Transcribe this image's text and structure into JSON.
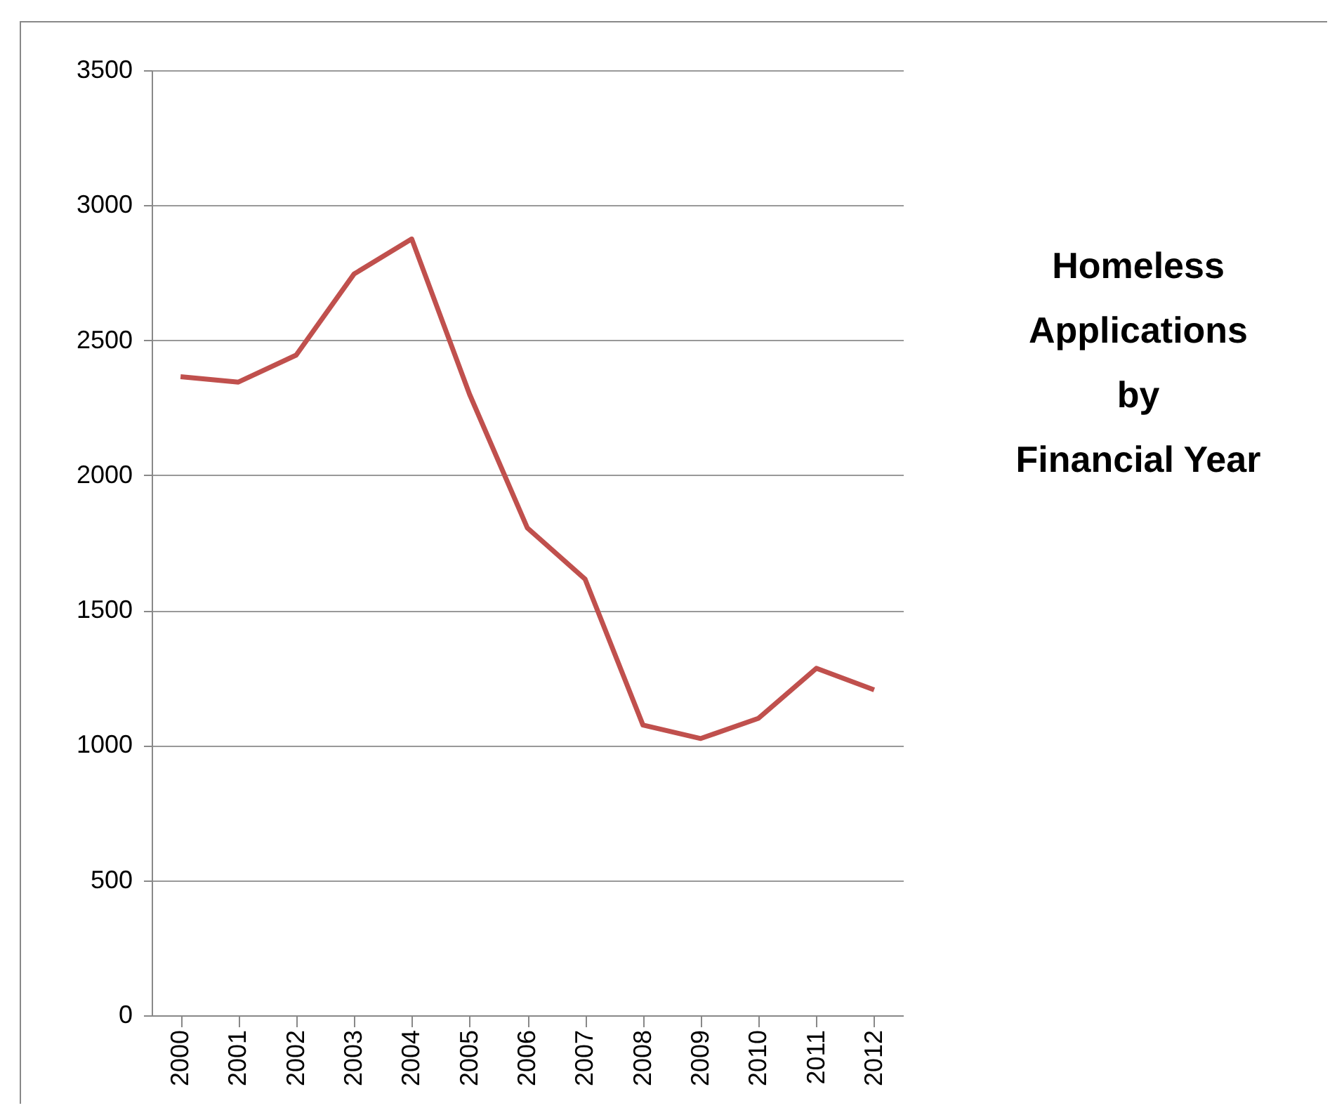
{
  "chart_data": {
    "type": "line",
    "title": "Homeless\nApplications\nby\nFinancial Year",
    "categories": [
      "2000",
      "2001",
      "2002",
      "2003",
      "2004",
      "2005",
      "2006",
      "2007",
      "2008",
      "2009",
      "2010",
      "2011",
      "2012"
    ],
    "series": [
      {
        "color": "#c0504d",
        "values": [
          2365,
          2345,
          2445,
          2745,
          2875,
          2300,
          1805,
          1615,
          1075,
          1025,
          1100,
          1285,
          1205
        ]
      }
    ],
    "ylim": [
      0,
      3500
    ],
    "yticks": [
      0,
      500,
      1000,
      1500,
      2000,
      2500,
      3000,
      3500
    ],
    "grid": "y",
    "legend": false,
    "marker": "none"
  }
}
